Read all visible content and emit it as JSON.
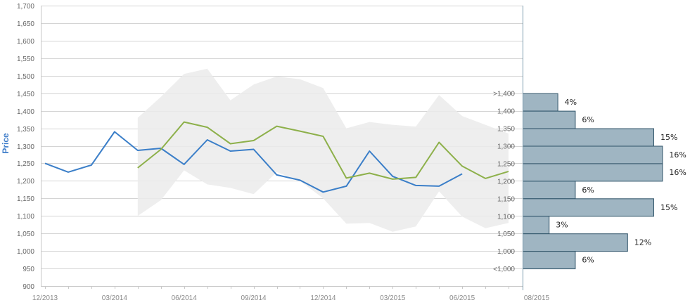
{
  "chart_data": {
    "type": "line",
    "title": "",
    "ylabel": "Price",
    "xlabel": "",
    "ylim": [
      900,
      1700
    ],
    "y_ticks": [
      "900",
      "950",
      "1,000",
      "1,050",
      "1,100",
      "1,150",
      "1,200",
      "1,250",
      "1,300",
      "1,350",
      "1,400",
      "1,450",
      "1,500",
      "1,550",
      "1,600",
      "1,650",
      "1,700"
    ],
    "x_ticks": [
      "12/2013",
      "03/2014",
      "06/2014",
      "09/2014",
      "12/2014",
      "03/2015",
      "06/2015",
      "08/2015"
    ],
    "grid": true,
    "x_months": [
      "2013-12",
      "2014-01",
      "2014-02",
      "2014-03",
      "2014-04",
      "2014-05",
      "2014-06",
      "2014-07",
      "2014-08",
      "2014-09",
      "2014-10",
      "2014-11",
      "2014-12",
      "2015-01",
      "2015-02",
      "2015-03",
      "2015-04",
      "2015-05",
      "2015-06",
      "2015-07",
      "2015-08"
    ],
    "series": [
      {
        "color": "#3a7ec8",
        "values": [
          1250,
          1225,
          1245,
          1340,
          1287,
          1293,
          1247,
          1317,
          1285,
          1290,
          1217,
          1202,
          1168,
          1185,
          1285,
          1213,
          1187,
          1185,
          1220,
          null,
          null
        ]
      },
      {
        "color": "#8db04a",
        "values": [
          null,
          null,
          null,
          null,
          1237,
          1290,
          1368,
          1353,
          1306,
          1315,
          1356,
          1342,
          1327,
          1208,
          1222,
          1205,
          1210,
          1310,
          1242,
          1207,
          1227
        ]
      }
    ],
    "band": {
      "color": "#ebebeb",
      "upper": [
        null,
        null,
        null,
        null,
        1380,
        1440,
        1505,
        1520,
        1430,
        1475,
        1498,
        1490,
        1465,
        1350,
        1368,
        1360,
        1355,
        1445,
        1385,
        1360,
        1335
      ],
      "lower": [
        null,
        null,
        null,
        null,
        1100,
        1145,
        1230,
        1190,
        1180,
        1162,
        1225,
        1200,
        1150,
        1078,
        1080,
        1055,
        1070,
        1170,
        1098,
        1065,
        1080
      ]
    },
    "histogram": {
      "color": "#9fb5c2",
      "edge_color": "#2f5368",
      "bins": [
        {
          "label": ">1,400",
          "percent_label": "4%",
          "value": 4
        },
        {
          "label": "1,400",
          "percent_label": "6%",
          "value": 6
        },
        {
          "label": "1,350",
          "percent_label": "15%",
          "value": 15
        },
        {
          "label": "1,300",
          "percent_label": "16%",
          "value": 16
        },
        {
          "label": "1,250",
          "percent_label": "16%",
          "value": 16
        },
        {
          "label": "1,200",
          "percent_label": "6%",
          "value": 6
        },
        {
          "label": "1,150",
          "percent_label": "15%",
          "value": 15
        },
        {
          "label": "1,100",
          "percent_label": "3%",
          "value": 3
        },
        {
          "label": "1,050",
          "percent_label": "12%",
          "value": 12
        },
        {
          "label": "1,000",
          "percent_label": "6%",
          "value": 6
        },
        {
          "label": "<1,000",
          "percent_label": "",
          "value": 0
        }
      ]
    }
  }
}
